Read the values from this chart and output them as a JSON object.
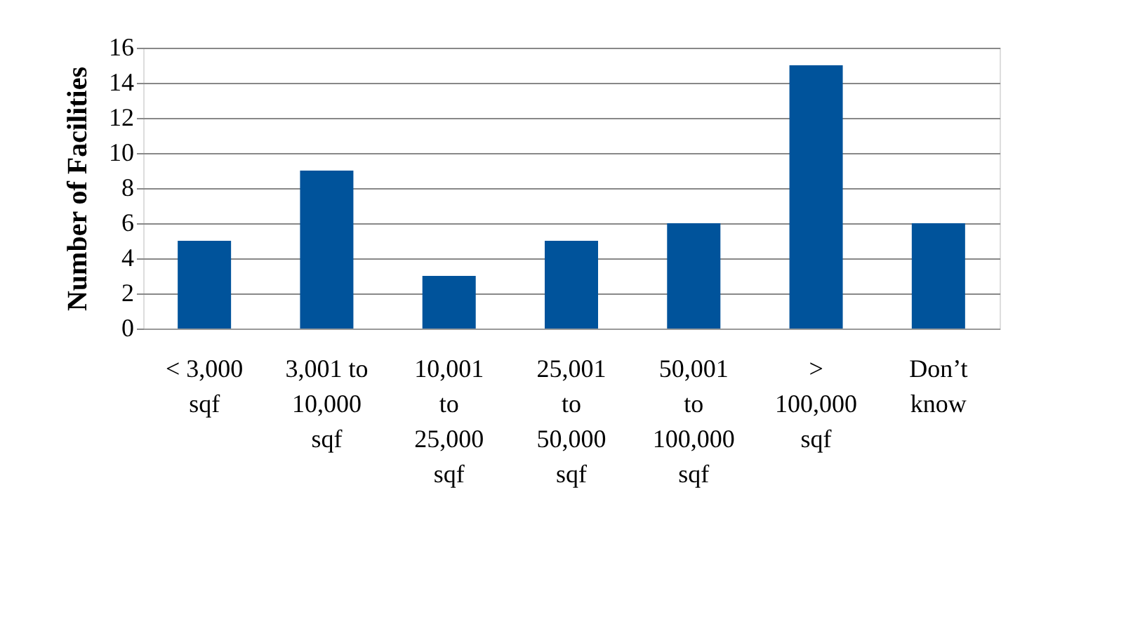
{
  "chart_data": {
    "type": "bar",
    "categories": [
      "< 3,000 sqf",
      "3,001 to 10,000 sqf",
      "10,001 to 25,000 sqf",
      "25,001 to 50,000 sqf",
      "50,001 to 100,000 sqf",
      "> 100,000 sqf",
      "Don’t know"
    ],
    "values": [
      5,
      9,
      3,
      5,
      6,
      15,
      6
    ],
    "color": "#00539b",
    "ylabel": "Number of Facilities",
    "ylim": [
      0,
      16
    ],
    "yticks": [
      0,
      2,
      4,
      6,
      8,
      10,
      12,
      14,
      16
    ],
    "grid": "y"
  }
}
